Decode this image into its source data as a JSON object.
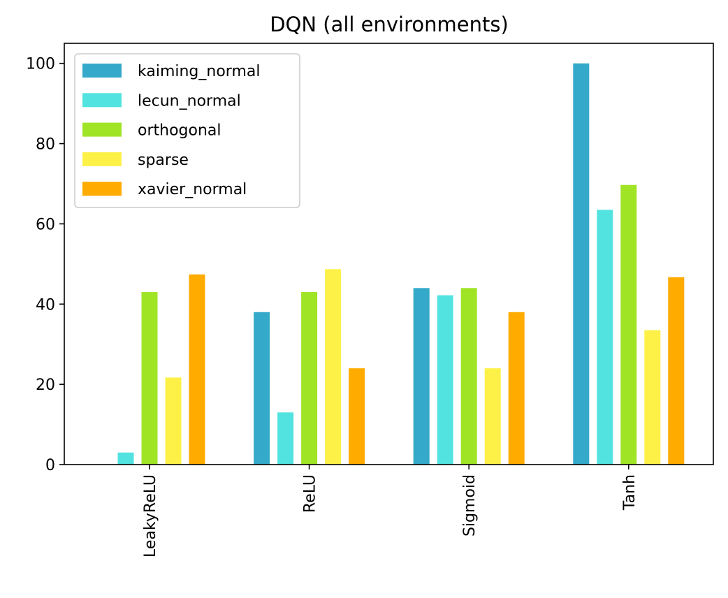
{
  "chart_data": {
    "type": "bar",
    "title": "DQN (all environments)",
    "xlabel": "",
    "ylabel": "",
    "categories": [
      "LeakyReLU",
      "ReLU",
      "Sigmoid",
      "Tanh"
    ],
    "series": [
      {
        "name": "kaiming_normal",
        "color": "#34a9c9",
        "values": [
          0,
          38,
          44,
          100
        ]
      },
      {
        "name": "lecun_normal",
        "color": "#52e3e1",
        "values": [
          3,
          13,
          42.2,
          63.5
        ]
      },
      {
        "name": "orthogonal",
        "color": "#a0e426",
        "values": [
          43,
          43,
          44,
          69.7
        ]
      },
      {
        "name": "sparse",
        "color": "#fdf148",
        "values": [
          21.7,
          48.7,
          24,
          33.5
        ]
      },
      {
        "name": "xavier_normal",
        "color": "#ffab00",
        "values": [
          47.4,
          24,
          38,
          46.7
        ]
      }
    ],
    "ylim": [
      0,
      105
    ],
    "yticks": [
      0,
      20,
      40,
      60,
      80,
      100
    ],
    "legend_position": "upper-left",
    "grid": false
  }
}
